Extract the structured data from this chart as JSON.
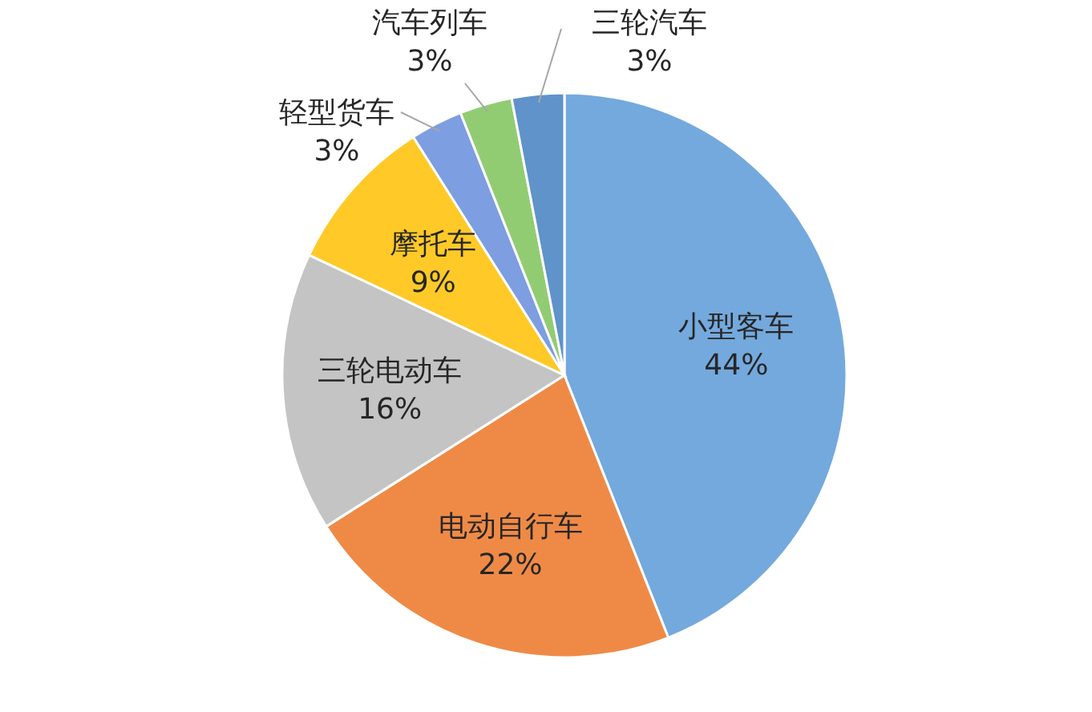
{
  "chart_data": {
    "type": "pie",
    "categories": [
      "小型客车",
      "电动自行车",
      "三轮电动车",
      "摩托车",
      "轻型货车",
      "汽车列车",
      "三轮汽车"
    ],
    "values": [
      44,
      22,
      16,
      9,
      3,
      3,
      3
    ],
    "value_labels": [
      "44%",
      "22%",
      "16%",
      "9%",
      "3%",
      "3%",
      "3%"
    ],
    "colors": [
      "#74a9dd",
      "#ef8a46",
      "#c4c4c4",
      "#ffc928",
      "#7d9ee0",
      "#92cc72",
      "#5f93c9"
    ]
  }
}
